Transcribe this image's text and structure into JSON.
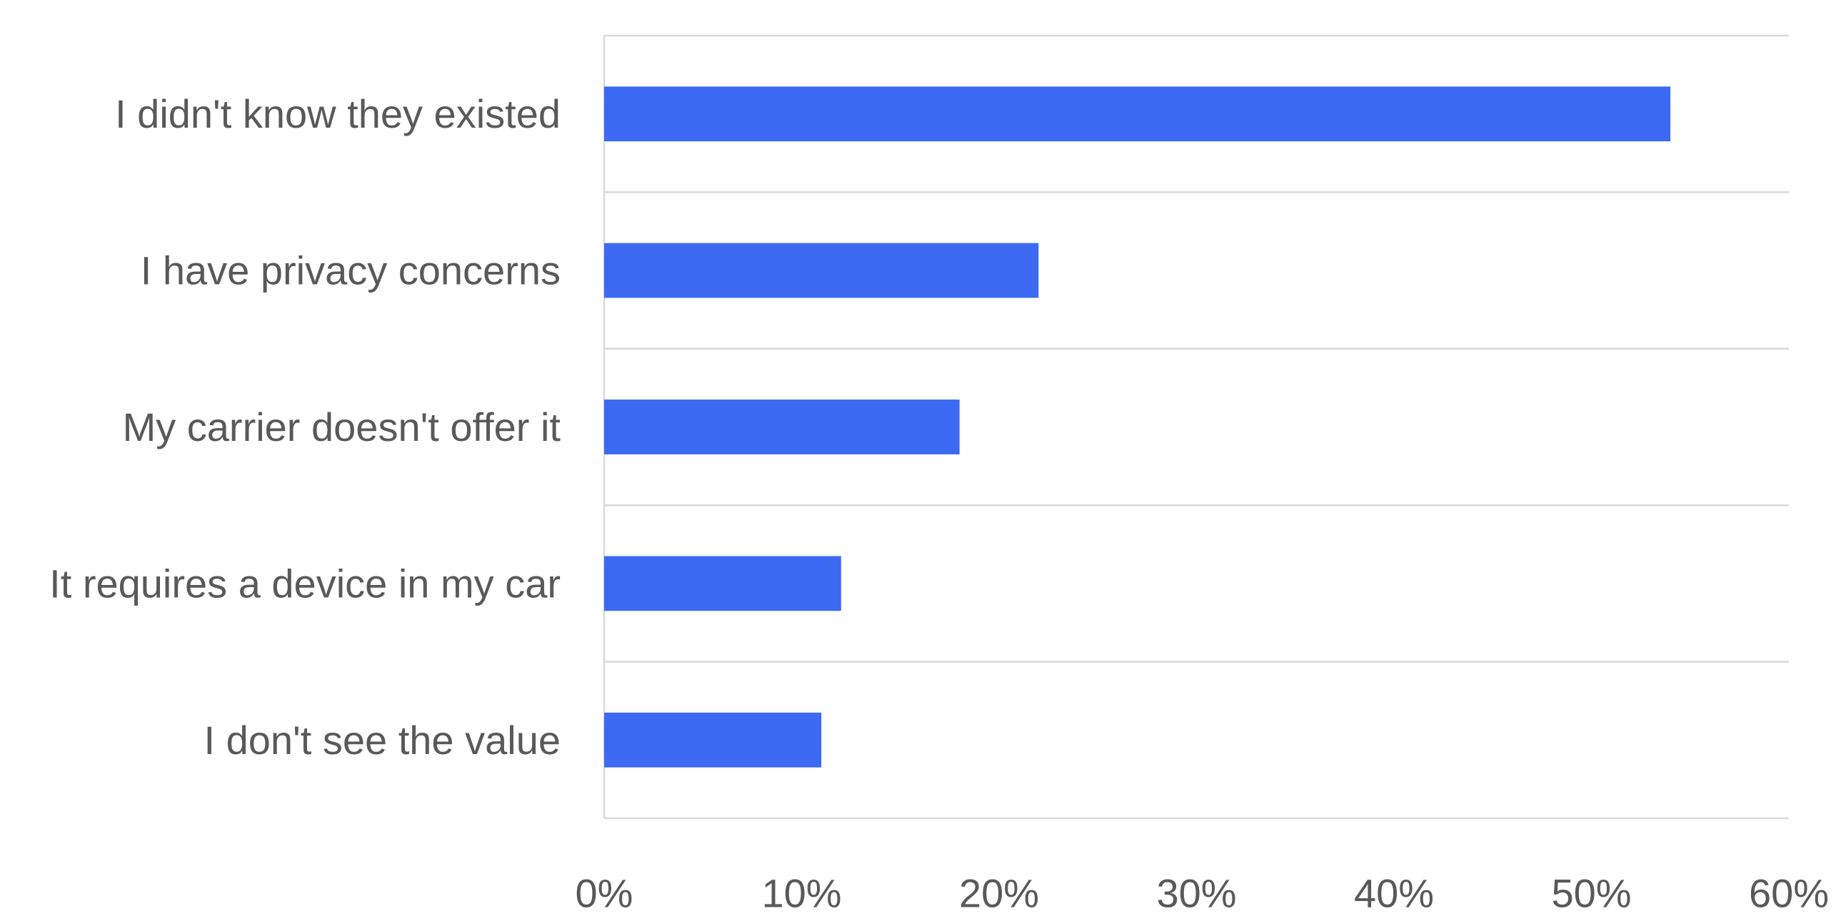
{
  "chart_data": {
    "type": "bar",
    "orientation": "horizontal",
    "title": "",
    "xlabel": "",
    "ylabel": "",
    "categories": [
      "I didn't know they existed",
      "I have privacy concerns",
      "My carrier doesn't offer it",
      "It requires a device in my car",
      "I don't see the value"
    ],
    "values": [
      54,
      22,
      18,
      12,
      11
    ],
    "value_unit": "%",
    "xlim": [
      0,
      60
    ],
    "x_ticks": [
      0,
      10,
      20,
      30,
      40,
      50,
      60
    ],
    "x_tick_labels": [
      "0%",
      "10%",
      "20%",
      "30%",
      "40%",
      "50%",
      "60%"
    ],
    "grid": "horizontal category separators",
    "legend": "none",
    "bar_color": "#3d6af2",
    "text_color": "#595959",
    "grid_color": "#d9d9d9"
  }
}
